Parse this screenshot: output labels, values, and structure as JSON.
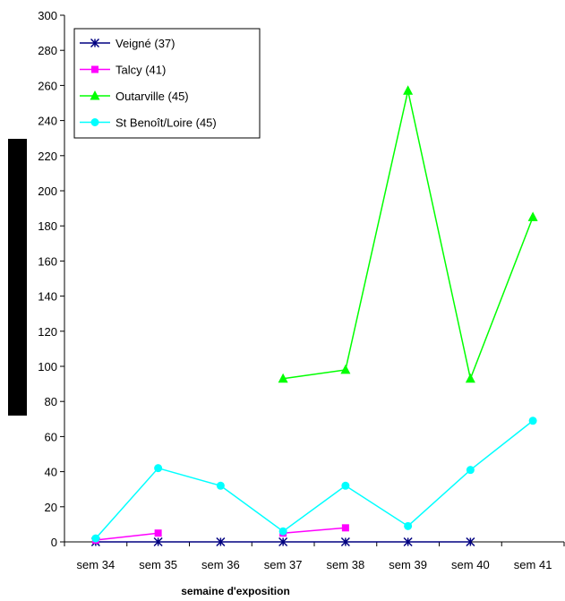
{
  "chart_data": {
    "type": "line",
    "title": "",
    "xlabel": "semaine d'exposition",
    "ylabel": "",
    "ylim": [
      0,
      300
    ],
    "ytick_step": 20,
    "grid": false,
    "legend_position": "top-left",
    "categories": [
      "sem 34",
      "sem 35",
      "sem 36",
      "sem 37",
      "sem 38",
      "sem 39",
      "sem 40",
      "sem 41"
    ],
    "series": [
      {
        "name": "Veigné (37)",
        "color": "#000080",
        "marker": "star",
        "values": [
          0,
          0,
          0,
          0,
          0,
          0,
          0,
          null
        ]
      },
      {
        "name": "Talcy (41)",
        "color": "#ff00ff",
        "marker": "square",
        "values": [
          1,
          5,
          null,
          5,
          8,
          null,
          null,
          null
        ]
      },
      {
        "name": "Outarville (45)",
        "color": "#00ff00",
        "marker": "triangle",
        "values": [
          null,
          null,
          null,
          93,
          98,
          257,
          93,
          185
        ]
      },
      {
        "name": "St Benoît/Loire (45)",
        "color": "#00ffff",
        "marker": "circle",
        "values": [
          2,
          42,
          32,
          6,
          32,
          9,
          41,
          69
        ]
      }
    ]
  }
}
